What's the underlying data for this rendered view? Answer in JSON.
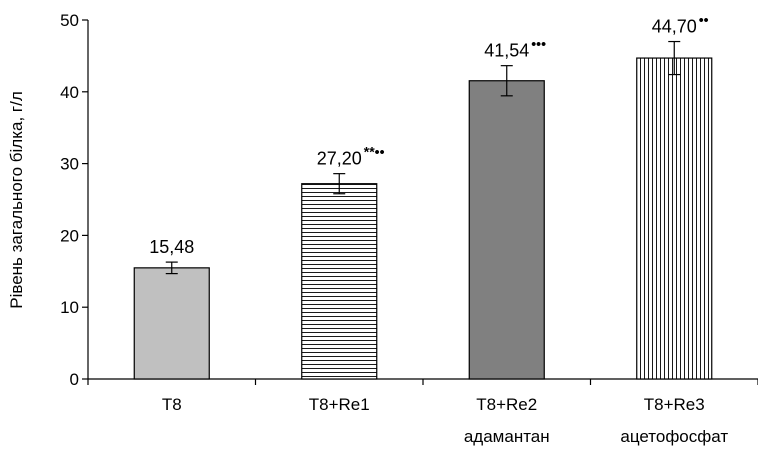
{
  "chart_data": {
    "type": "bar",
    "title": "",
    "xlabel": "",
    "ylabel": "Рівень загального білка, г/л",
    "ylim": [
      0,
      50
    ],
    "yticks": [
      0,
      10,
      20,
      30,
      40,
      50
    ],
    "grid": false,
    "categories": [
      {
        "line1": "T8",
        "line2": ""
      },
      {
        "line1": "T8+Re1",
        "line2": ""
      },
      {
        "line1": "T8+Re2",
        "line2": "адамантан"
      },
      {
        "line1": "T8+Re3",
        "line2": "ацетофосфат"
      }
    ],
    "values": [
      15.48,
      27.2,
      41.54,
      44.7
    ],
    "value_labels": [
      "15,48",
      "27,20",
      "41,54",
      "44,70"
    ],
    "significance": [
      "",
      "**••",
      "•••",
      "••"
    ],
    "errors": [
      0.8,
      1.4,
      2.1,
      2.3
    ],
    "fills": [
      "solid-light-gray",
      "horizontal-hatch",
      "solid-dark-gray",
      "vertical-hatch"
    ],
    "colors": {
      "light_gray": "#c0c0c0",
      "dark_gray": "#808080",
      "line": "#000000"
    }
  }
}
